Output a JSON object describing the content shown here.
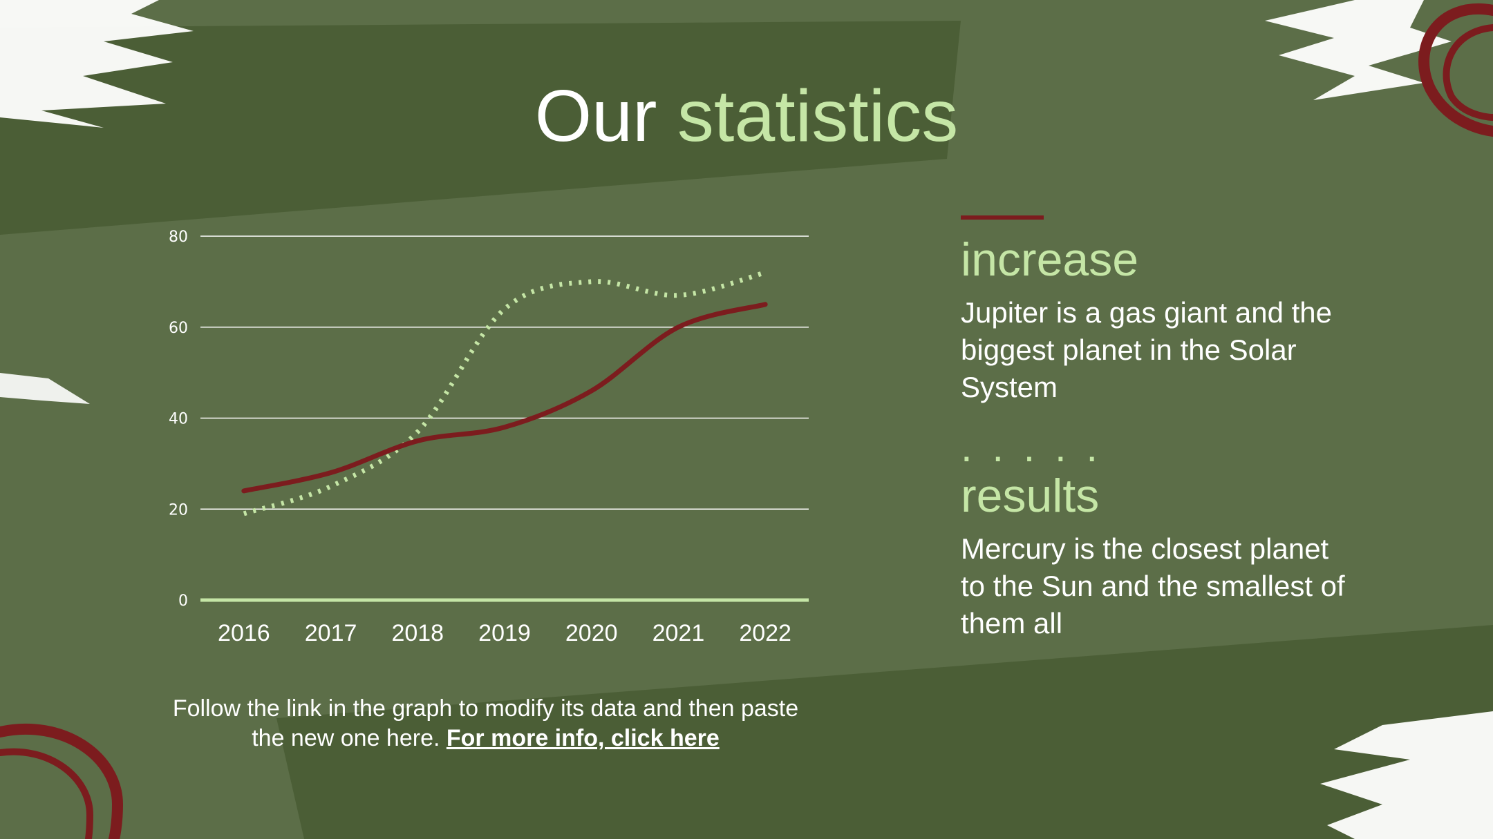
{
  "title": {
    "part1": "Our",
    "part2": "statistics"
  },
  "colors": {
    "background": "#5c6e48",
    "band": "#4b5e36",
    "accent_green": "#c5e6a6",
    "accent_red": "#7c1c1e",
    "text": "#ffffff"
  },
  "chart_data": {
    "type": "line",
    "x": [
      "2016",
      "2017",
      "2018",
      "2019",
      "2020",
      "2021",
      "2022"
    ],
    "ylim": [
      0,
      80
    ],
    "yticks": [
      "0",
      "20",
      "40",
      "60",
      "80"
    ],
    "grid": true,
    "legend": "none",
    "series": [
      {
        "values": [
          24,
          28,
          35,
          38,
          46,
          60,
          65
        ],
        "style": "solid",
        "color": "#7c1c1e"
      },
      {
        "values": [
          19,
          25,
          37,
          64,
          70,
          67,
          72
        ],
        "style": "dotted",
        "color": "#c5e6a6"
      }
    ]
  },
  "caption": {
    "text": "Follow the link in the graph to modify its data and then paste the new one here.",
    "link": "For more info, click here"
  },
  "panels": [
    {
      "heading": "increase",
      "body": "Jupiter is a gas giant and the biggest planet in the Solar System",
      "marker": "bar"
    },
    {
      "heading": "results",
      "body": "Mercury is the closest planet to the Sun and the smallest of them all",
      "marker": "dots",
      "dots": ". . . . ."
    }
  ]
}
